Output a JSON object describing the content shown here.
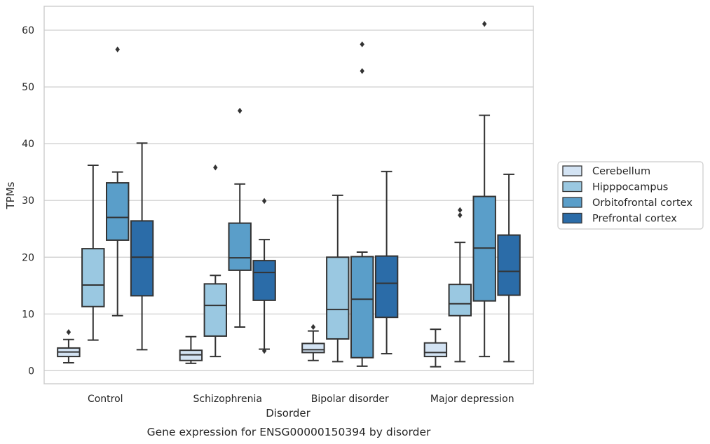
{
  "chart_data": {
    "type": "box",
    "caption": "Gene expression for ENSG00000150394 by disorder",
    "xlabel": "Disorder",
    "ylabel": "TPMs",
    "ylim": [
      -2.3,
      64.2
    ],
    "yticks": [
      0,
      10,
      20,
      30,
      40,
      50,
      60
    ],
    "grid": "horizontal",
    "legend_position": "right",
    "categories": [
      "Control",
      "Schizophrenia",
      "Bipolar disorder",
      "Major depression"
    ],
    "series": [
      {
        "name": "Cerebellum",
        "color": "#d3e3f3",
        "boxes": [
          {
            "whislo": 1.4,
            "q1": 2.5,
            "med": 3.3,
            "q3": 4.0,
            "whishi": 5.5,
            "fliers": [
              6.8
            ]
          },
          {
            "whislo": 1.3,
            "q1": 1.8,
            "med": 2.8,
            "q3": 3.6,
            "whishi": 6.0,
            "fliers": []
          },
          {
            "whislo": 1.8,
            "q1": 3.2,
            "med": 3.7,
            "q3": 4.8,
            "whishi": 7.0,
            "fliers": [
              7.7
            ]
          },
          {
            "whislo": 0.7,
            "q1": 2.5,
            "med": 3.2,
            "q3": 4.9,
            "whishi": 7.3,
            "fliers": []
          }
        ]
      },
      {
        "name": "Hipppocampus",
        "color": "#9ac8e1",
        "boxes": [
          {
            "whislo": 5.4,
            "q1": 11.3,
            "med": 15.1,
            "q3": 21.5,
            "whishi": 36.2,
            "fliers": []
          },
          {
            "whislo": 2.5,
            "q1": 6.1,
            "med": 11.5,
            "q3": 15.3,
            "whishi": 16.8,
            "fliers": [
              35.8
            ]
          },
          {
            "whislo": 1.6,
            "q1": 5.6,
            "med": 10.8,
            "q3": 20.0,
            "whishi": 30.9,
            "fliers": []
          },
          {
            "whislo": 1.6,
            "q1": 9.7,
            "med": 11.8,
            "q3": 15.2,
            "whishi": 22.6,
            "fliers": [
              27.4,
              28.3
            ]
          }
        ]
      },
      {
        "name": "Orbitofrontal cortex",
        "color": "#5a9ec9",
        "boxes": [
          {
            "whislo": 9.7,
            "q1": 23.0,
            "med": 27.0,
            "q3": 33.1,
            "whishi": 35.0,
            "fliers": [
              56.6
            ]
          },
          {
            "whislo": 7.7,
            "q1": 17.7,
            "med": 19.9,
            "q3": 26.0,
            "whishi": 32.9,
            "fliers": [
              45.8
            ]
          },
          {
            "whislo": 0.8,
            "q1": 2.3,
            "med": 12.6,
            "q3": 20.1,
            "whishi": 20.9,
            "fliers": [
              52.8,
              57.5
            ]
          },
          {
            "whislo": 2.5,
            "q1": 12.3,
            "med": 21.6,
            "q3": 30.7,
            "whishi": 45.0,
            "fliers": [
              61.1
            ]
          }
        ]
      },
      {
        "name": "Prefrontal cortex",
        "color": "#2b6ca8",
        "boxes": [
          {
            "whislo": 3.7,
            "q1": 13.2,
            "med": 20.0,
            "q3": 26.4,
            "whishi": 40.1,
            "fliers": []
          },
          {
            "whislo": 3.8,
            "q1": 12.4,
            "med": 17.3,
            "q3": 19.4,
            "whishi": 23.1,
            "fliers": [
              3.5,
              29.9
            ]
          },
          {
            "whislo": 3.0,
            "q1": 9.4,
            "med": 15.4,
            "q3": 20.2,
            "whishi": 35.1,
            "fliers": []
          },
          {
            "whislo": 1.6,
            "q1": 13.3,
            "med": 17.5,
            "q3": 23.9,
            "whishi": 34.6,
            "fliers": []
          }
        ]
      }
    ]
  }
}
